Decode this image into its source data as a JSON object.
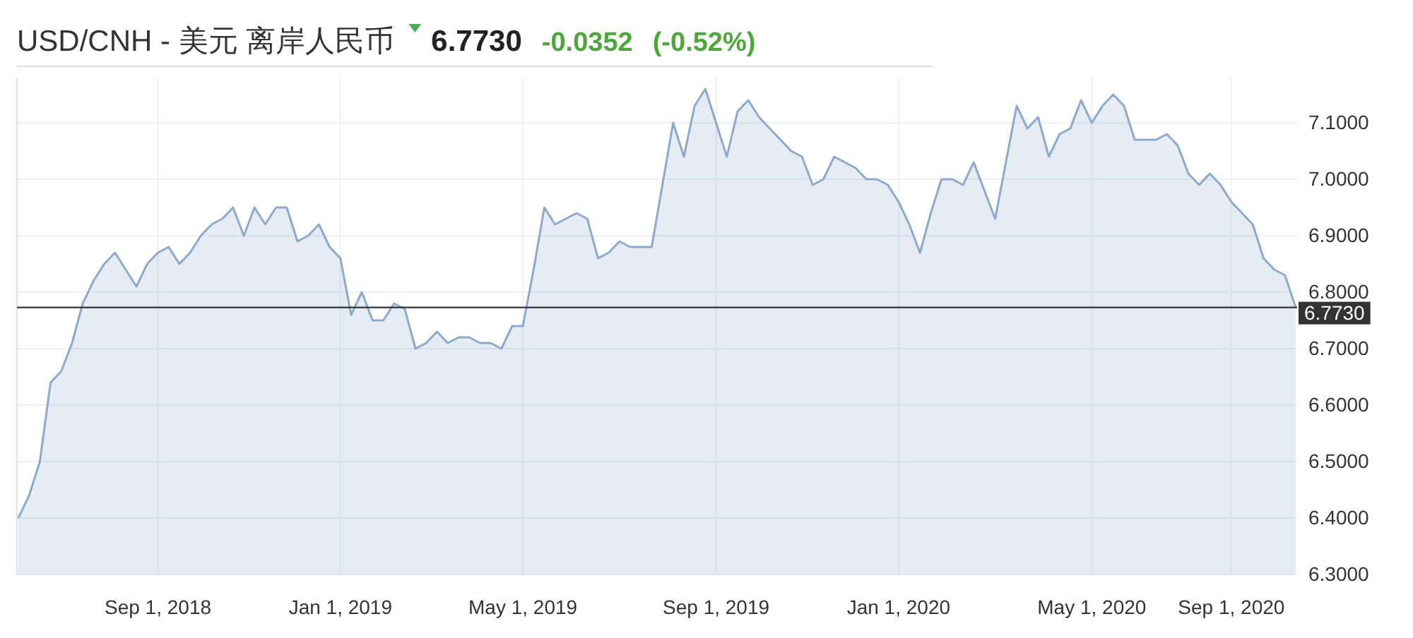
{
  "chart_data": {
    "type": "area",
    "title": "USD/CNH - 美元 离岸人民币",
    "annotations": [
      "6.7730",
      "-0.0352",
      "(-0.52%)"
    ],
    "categories": [
      null,
      null,
      null,
      null,
      null,
      null,
      null,
      null,
      null,
      null,
      null,
      null,
      null,
      "Sep 1, 2018",
      null,
      null,
      null,
      null,
      null,
      null,
      null,
      null,
      null,
      null,
      null,
      null,
      null,
      null,
      null,
      null,
      "Jan 1, 2019",
      null,
      null,
      null,
      null,
      null,
      null,
      null,
      null,
      null,
      null,
      null,
      null,
      null,
      null,
      null,
      null,
      "May 1, 2019",
      null,
      null,
      null,
      null,
      null,
      null,
      null,
      null,
      null,
      null,
      null,
      null,
      null,
      null,
      null,
      null,
      null,
      "Sep 1, 2019",
      null,
      null,
      null,
      null,
      null,
      null,
      null,
      null,
      null,
      null,
      null,
      null,
      null,
      null,
      null,
      null,
      "Jan 1, 2020",
      null,
      null,
      null,
      null,
      null,
      null,
      null,
      null,
      null,
      null,
      null,
      null,
      null,
      null,
      null,
      null,
      null,
      "May 1, 2020",
      null,
      null,
      null,
      null,
      null,
      null,
      null,
      null,
      null,
      null,
      null,
      null,
      "Sep 1, 2020",
      null,
      null,
      null,
      null,
      null,
      null
    ],
    "series": [
      {
        "color": "#8eaacb",
        "values": [
          6.4,
          6.44,
          6.5,
          6.64,
          6.66,
          6.71,
          6.78,
          6.82,
          6.85,
          6.87,
          6.84,
          6.81,
          6.85,
          6.87,
          6.88,
          6.85,
          6.87,
          6.9,
          6.92,
          6.93,
          6.95,
          6.9,
          6.95,
          6.92,
          6.95,
          6.95,
          6.89,
          6.9,
          6.92,
          6.88,
          6.86,
          6.76,
          6.8,
          6.75,
          6.75,
          6.78,
          6.77,
          6.7,
          6.71,
          6.73,
          6.71,
          6.72,
          6.72,
          6.71,
          6.71,
          6.7,
          6.74,
          6.74,
          6.84,
          6.95,
          6.92,
          6.93,
          6.94,
          6.93,
          6.86,
          6.87,
          6.89,
          6.88,
          6.88,
          6.88,
          6.99,
          7.1,
          7.04,
          7.13,
          7.16,
          7.1,
          7.04,
          7.12,
          7.14,
          7.11,
          7.09,
          7.07,
          7.05,
          7.04,
          6.99,
          7.0,
          7.04,
          7.03,
          7.02,
          7.0,
          7.0,
          6.99,
          6.96,
          6.92,
          6.87,
          6.94,
          7.0,
          7.0,
          6.99,
          7.03,
          6.98,
          6.93,
          7.03,
          7.13,
          7.09,
          7.11,
          7.04,
          7.08,
          7.09,
          7.14,
          7.1,
          7.13,
          7.15,
          7.13,
          7.07,
          7.07,
          7.07,
          7.08,
          7.06,
          7.01,
          6.99,
          7.01,
          6.99,
          6.96,
          6.94,
          6.92,
          6.86,
          6.84,
          6.83,
          6.773
        ]
      }
    ],
    "ylim": [
      6.3,
      7.18
    ],
    "yticks": [
      {
        "value": 6.3,
        "label": "6.3000"
      },
      {
        "value": 6.4,
        "label": "6.4000"
      },
      {
        "value": 6.5,
        "label": "6.5000"
      },
      {
        "value": 6.6,
        "label": "6.6000"
      },
      {
        "value": 6.7,
        "label": "6.7000"
      },
      {
        "value": 6.8,
        "label": "6.8000"
      },
      {
        "value": 6.9,
        "label": "6.9000"
      },
      {
        "value": 7.0,
        "label": "7.0000"
      },
      {
        "value": 7.1,
        "label": "7.1000"
      }
    ],
    "ref_lines": [
      {
        "axis": "y",
        "value": 6.773,
        "label": "6.7730",
        "color": "#333333"
      }
    ],
    "grid": true
  }
}
